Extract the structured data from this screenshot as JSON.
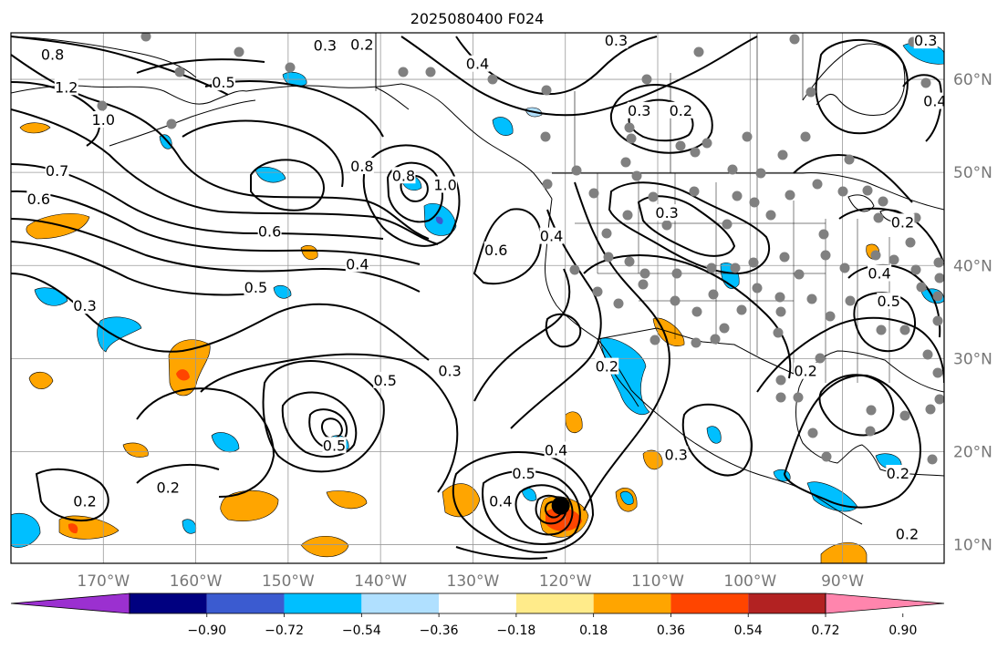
{
  "title": "2025080400 F024",
  "map": {
    "projection": "PlateCarree",
    "extent_deg": {
      "lon_min": -180,
      "lon_max": -79,
      "lat_min": 8,
      "lat_max": 65
    },
    "lon_ticks": [
      {
        "value": -170,
        "label": "170°W"
      },
      {
        "value": -160,
        "label": "160°W"
      },
      {
        "value": -150,
        "label": "150°W"
      },
      {
        "value": -140,
        "label": "140°W"
      },
      {
        "value": -130,
        "label": "130°W"
      },
      {
        "value": -120,
        "label": "120°W"
      },
      {
        "value": -110,
        "label": "110°W"
      },
      {
        "value": -100,
        "label": "100°W"
      },
      {
        "value": -90,
        "label": "90°W"
      }
    ],
    "lat_ticks": [
      {
        "value": 60,
        "label": "60°N"
      },
      {
        "value": 50,
        "label": "50°N"
      },
      {
        "value": 40,
        "label": "40°N"
      },
      {
        "value": 30,
        "label": "30°N"
      },
      {
        "value": 20,
        "label": "20°N"
      },
      {
        "value": 10,
        "label": "10°N"
      }
    ],
    "contour_labels": [
      {
        "text": "0.8",
        "lon": -175.5,
        "lat": 62.5
      },
      {
        "text": "1.2",
        "lon": -174,
        "lat": 59
      },
      {
        "text": "1.0",
        "lon": -170,
        "lat": 55.5
      },
      {
        "text": "0.7",
        "lon": -175.0,
        "lat": 50
      },
      {
        "text": "0.6",
        "lon": -177,
        "lat": 47
      },
      {
        "text": "0.5",
        "lon": -157,
        "lat": 59.5
      },
      {
        "text": "0.3",
        "lon": -146,
        "lat": 63.5
      },
      {
        "text": "0.2",
        "lon": -142,
        "lat": 63.6
      },
      {
        "text": "0.8",
        "lon": -142,
        "lat": 50.5
      },
      {
        "text": "0.8",
        "lon": -137.5,
        "lat": 49.5
      },
      {
        "text": "1.0",
        "lon": -133,
        "lat": 48.5
      },
      {
        "text": "0.6",
        "lon": -152,
        "lat": 43.5
      },
      {
        "text": "0.5",
        "lon": -153.5,
        "lat": 37.5
      },
      {
        "text": "0.4",
        "lon": -142.5,
        "lat": 40
      },
      {
        "text": "0.3",
        "lon": -172,
        "lat": 35.5
      },
      {
        "text": "0.4",
        "lon": -129.5,
        "lat": 61.5
      },
      {
        "text": "0.3",
        "lon": -114.5,
        "lat": 64
      },
      {
        "text": "0.3",
        "lon": -112,
        "lat": 56.5
      },
      {
        "text": "0.2",
        "lon": -107.5,
        "lat": 56.5
      },
      {
        "text": "0.6",
        "lon": -127.5,
        "lat": 41.5
      },
      {
        "text": "0.4",
        "lon": -121.5,
        "lat": 43
      },
      {
        "text": "0.3",
        "lon": -109,
        "lat": 45.5
      },
      {
        "text": "0.5",
        "lon": -139.5,
        "lat": 27.5
      },
      {
        "text": "0.3",
        "lon": -132.5,
        "lat": 28.5
      },
      {
        "text": "0.2",
        "lon": -115.5,
        "lat": 29
      },
      {
        "text": "0.5",
        "lon": -145,
        "lat": 20.5
      },
      {
        "text": "0.5",
        "lon": -124.5,
        "lat": 17.5
      },
      {
        "text": "0.4",
        "lon": -121,
        "lat": 20
      },
      {
        "text": "0.4",
        "lon": -127,
        "lat": 14.5
      },
      {
        "text": "0.3",
        "lon": -108,
        "lat": 19.5
      },
      {
        "text": "0.2",
        "lon": -172,
        "lat": 14.5
      },
      {
        "text": "0.2",
        "lon": -163,
        "lat": 16
      },
      {
        "text": "0.2",
        "lon": -94,
        "lat": 28.5
      },
      {
        "text": "0.2",
        "lon": -84,
        "lat": 17.5
      },
      {
        "text": "0.2",
        "lon": -83.5,
        "lat": 44.5
      },
      {
        "text": "0.3",
        "lon": -81.0,
        "lat": 64
      },
      {
        "text": "0.4",
        "lon": -80,
        "lat": 57.5
      },
      {
        "text": "0.5",
        "lon": -85,
        "lat": 36
      },
      {
        "text": "0.4",
        "lon": -86,
        "lat": 39
      },
      {
        "text": "0.2",
        "lon": -83,
        "lat": 11
      }
    ],
    "storm_center": {
      "lon": -120.5,
      "lat": 14.2
    }
  },
  "colorbar": {
    "colors": [
      "#9b30d0",
      "#000080",
      "#3b5bd0",
      "#00bfff",
      "#b0e0ff",
      "#ffffff",
      "#ffeb8a",
      "#ffa500",
      "#ff4500",
      "#b22222",
      "#ff85ad"
    ],
    "tick_labels": [
      "−0.90",
      "−0.72",
      "−0.54",
      "−0.36",
      "−0.18",
      "0.18",
      "0.36",
      "0.54",
      "0.72",
      "0.90"
    ]
  },
  "colors": {
    "axis_label": "#777777",
    "contour": "#000000",
    "grid": "#999999"
  }
}
